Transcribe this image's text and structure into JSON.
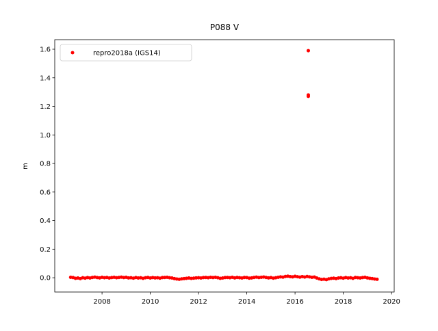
{
  "chart_data": {
    "type": "scatter",
    "title": "P088 V",
    "y_label": "m",
    "legend_loc": "upper left",
    "grid": false,
    "xlim": [
      2006.04,
      2020.11
    ],
    "ylim": [
      -0.1,
      1.667
    ],
    "xticks": [
      2008,
      2010,
      2012,
      2014,
      2016,
      2018,
      2020
    ],
    "yticks": [
      {
        "value": 0,
        "label": "0.0"
      },
      0.2,
      0.4,
      0.6,
      0.8,
      {
        "value": 1,
        "label": "1.0"
      },
      1.2,
      1.4,
      1.6
    ],
    "series": [
      {
        "name": "repro2018a (IGS14)",
        "color": "#ff0000",
        "x": [
          2006.7,
          2006.8,
          2006.9,
          2007.0,
          2007.1,
          2007.2,
          2007.3,
          2007.4,
          2007.5,
          2007.6,
          2007.7,
          2007.8,
          2007.9,
          2008.0,
          2008.1,
          2008.2,
          2008.3,
          2008.4,
          2008.5,
          2008.6,
          2008.7,
          2008.8,
          2008.9,
          2009.0,
          2009.1,
          2009.2,
          2009.3,
          2009.4,
          2009.5,
          2009.6,
          2009.7,
          2009.8,
          2009.9,
          2010.0,
          2010.1,
          2010.2,
          2010.3,
          2010.4,
          2010.5,
          2010.6,
          2010.7,
          2010.8,
          2010.9,
          2011.0,
          2011.1,
          2011.2,
          2011.3,
          2011.4,
          2011.5,
          2011.6,
          2011.7,
          2011.8,
          2011.9,
          2012.0,
          2012.1,
          2012.2,
          2012.3,
          2012.4,
          2012.5,
          2012.6,
          2012.7,
          2012.8,
          2012.9,
          2013.0,
          2013.1,
          2013.2,
          2013.3,
          2013.4,
          2013.5,
          2013.6,
          2013.7,
          2013.8,
          2013.9,
          2014.0,
          2014.1,
          2014.2,
          2014.3,
          2014.4,
          2014.5,
          2014.6,
          2014.7,
          2014.8,
          2014.9,
          2015.0,
          2015.1,
          2015.2,
          2015.3,
          2015.4,
          2015.5,
          2015.6,
          2015.7,
          2015.8,
          2015.9,
          2016.0,
          2016.1,
          2016.2,
          2016.3,
          2016.4,
          2016.5,
          2016.6,
          2016.7,
          2016.8,
          2016.9,
          2017.0,
          2017.1,
          2017.2,
          2017.3,
          2017.4,
          2017.5,
          2017.6,
          2017.7,
          2017.8,
          2017.9,
          2018.0,
          2018.1,
          2018.2,
          2018.3,
          2018.4,
          2018.5,
          2018.6,
          2018.7,
          2018.8,
          2018.9,
          2019.0,
          2019.1,
          2019.2,
          2019.3,
          2019.4,
          2016.55,
          2016.55,
          2016.55
        ],
        "values": [
          0.003,
          0.001,
          -0.004,
          -0.002,
          -0.006,
          0.0,
          -0.003,
          0.001,
          -0.002,
          0.002,
          0.004,
          0.001,
          -0.001,
          0.003,
          0.0,
          0.002,
          -0.002,
          0.001,
          0.003,
          0.0,
          0.002,
          0.004,
          0.001,
          0.003,
          -0.001,
          0.0,
          -0.003,
          0.001,
          -0.002,
          0.0,
          -0.004,
          0.0,
          0.002,
          -0.002,
          0.001,
          -0.001,
          0.0,
          -0.003,
          0.001,
          0.002,
          0.003,
          0.0,
          -0.002,
          -0.006,
          -0.009,
          -0.011,
          -0.008,
          -0.006,
          -0.004,
          -0.002,
          -0.005,
          -0.003,
          -0.001,
          0.0,
          -0.002,
          0.001,
          0.002,
          0.0,
          0.003,
          0.001,
          0.003,
          0.0,
          -0.004,
          -0.002,
          0.001,
          0.002,
          0.0,
          0.003,
          -0.001,
          0.002,
          0.0,
          -0.002,
          0.002,
          0.001,
          -0.003,
          -0.001,
          0.002,
          0.004,
          0.001,
          0.003,
          0.005,
          0.002,
          -0.001,
          0.001,
          -0.003,
          0.0,
          0.003,
          0.006,
          0.004,
          0.009,
          0.011,
          0.008,
          0.006,
          0.01,
          0.007,
          0.004,
          0.008,
          0.005,
          0.009,
          0.006,
          0.003,
          0.005,
          -0.002,
          -0.008,
          -0.012,
          -0.01,
          -0.013,
          -0.008,
          -0.005,
          -0.003,
          -0.006,
          -0.002,
          0.0,
          -0.003,
          0.001,
          -0.002,
          0.0,
          -0.004,
          0.002,
          0.0,
          -0.002,
          0.001,
          0.003,
          -0.001,
          -0.004,
          -0.006,
          -0.009,
          -0.011,
          1.59,
          1.28,
          1.27
        ]
      }
    ]
  }
}
